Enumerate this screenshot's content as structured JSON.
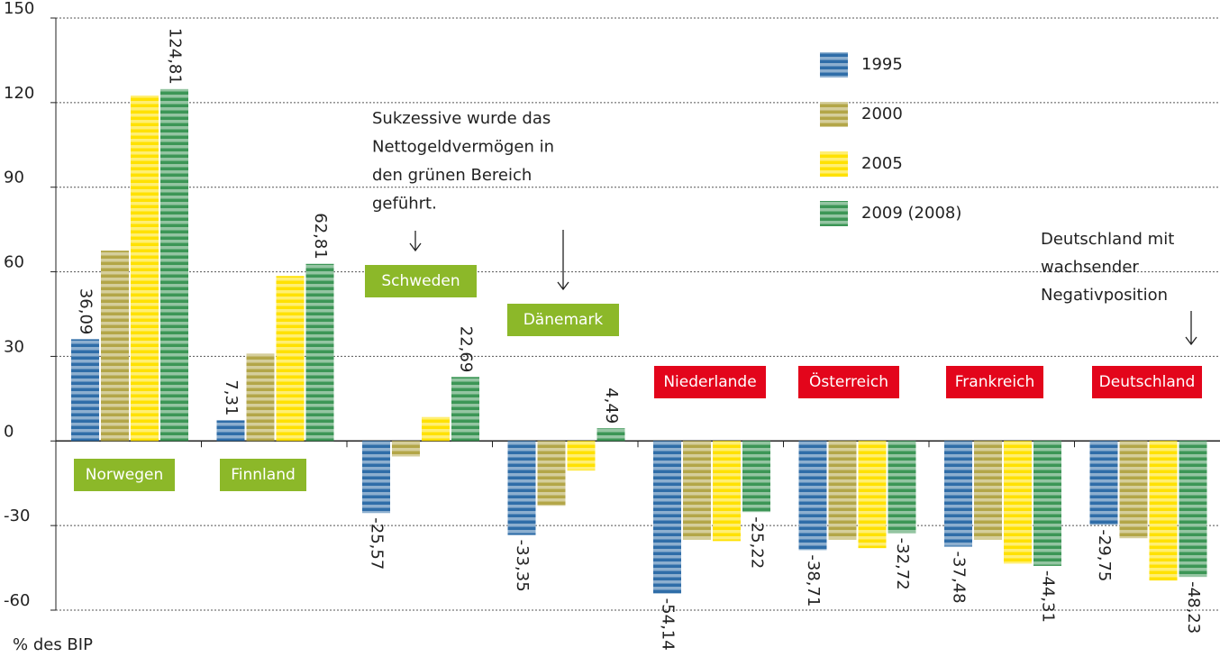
{
  "chart_data": {
    "type": "bar",
    "y_axis_label": "% des BIP",
    "categories": [
      "Norwegen",
      "Finnland",
      "Schweden",
      "Dänemark",
      "Niederlande",
      "Österreich",
      "Frankreich",
      "Deutschland"
    ],
    "category_colors": [
      "#8cb829",
      "#8cb829",
      "#8cb829",
      "#8cb829",
      "#e3051b",
      "#e3051b",
      "#e3051b",
      "#e3051b"
    ],
    "series": [
      {
        "name": "1995",
        "color": "#2f6da8",
        "values": [
          36.09,
          7.31,
          -25.57,
          -33.35,
          -54.14,
          -38.71,
          -37.48,
          -29.75
        ],
        "value_labels": [
          "36,09",
          "7,31",
          "-25,57",
          "-33,35",
          "-54,14",
          "-38,71",
          "-37,48",
          "-29,75"
        ]
      },
      {
        "name": "2000",
        "color": "#b3a648",
        "values": [
          67.5,
          31,
          -5.5,
          -23,
          -35,
          -35,
          -35,
          -34.5
        ]
      },
      {
        "name": "2005",
        "color": "#ffe100",
        "values": [
          122.5,
          58.5,
          8.5,
          -10.5,
          -35.5,
          -38,
          -43.5,
          -49.5
        ]
      },
      {
        "name": "2009 (2008)",
        "color": "#3c9656",
        "values": [
          124.81,
          62.81,
          22.69,
          4.49,
          -25.22,
          -32.72,
          -44.31,
          -48.23
        ],
        "value_labels": [
          "124,81",
          "62,81",
          "22,69",
          "4,49",
          "-25,22",
          "-32,72",
          "-44,31",
          "-48,23"
        ]
      }
    ],
    "ylim": [
      -60,
      150
    ],
    "yticks": [
      -60,
      -30,
      0,
      30,
      60,
      90,
      120,
      150
    ],
    "grid": true,
    "annotations": [
      {
        "lines": [
          "Sukzessive wurde das",
          "Nettogeldvermögen in",
          "den grünen Bereich",
          "geführt."
        ]
      },
      {
        "lines": [
          "Deutschland mit",
          "wachsender",
          "Negativposition"
        ]
      }
    ]
  }
}
